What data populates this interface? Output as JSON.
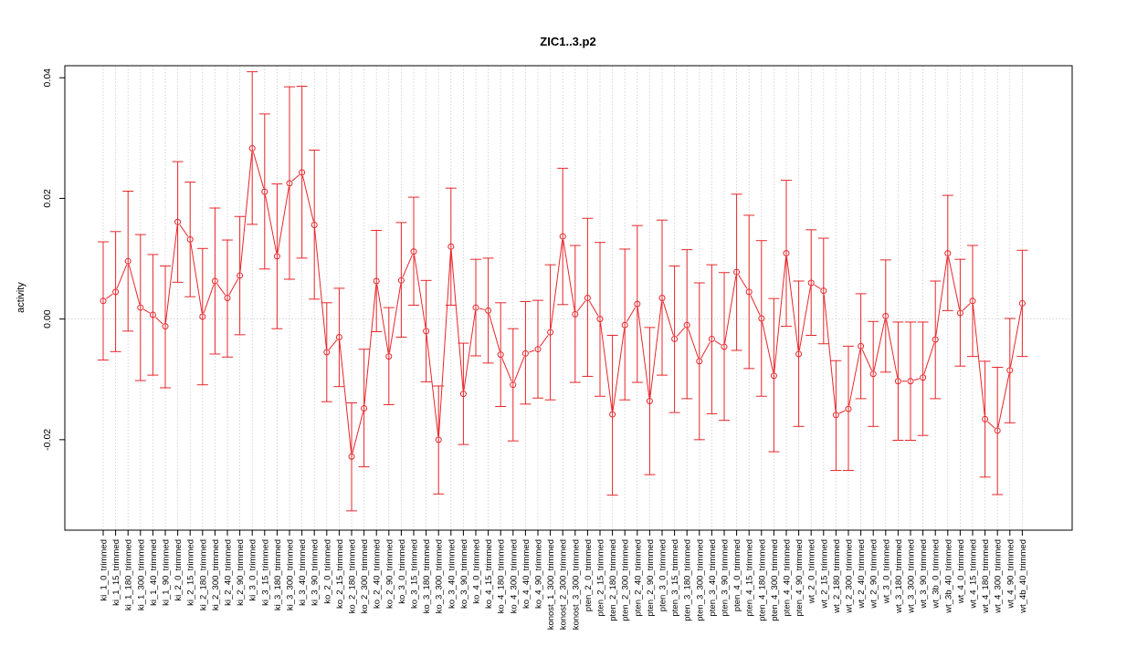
{
  "chart_data": {
    "type": "line",
    "title": "ZIC1..3.p2",
    "xlabel": "",
    "ylabel": "activity",
    "ylim": [
      -0.035,
      0.042
    ],
    "yticks": [
      -0.02,
      0.0,
      0.02,
      0.04
    ],
    "ytick_labels": [
      "-0.02",
      "0.00",
      "0.02",
      "0.04"
    ],
    "grid": true,
    "error_bars": true,
    "colors": {
      "series": "#e8262a",
      "grid": "#cccccc",
      "frame": "#000000"
    },
    "categories": [
      "ki_1_0_trimmed",
      "ki_1_15_trimmed",
      "ki_1_180_trimmed",
      "ki_1_300_trimmed",
      "ki_1_40_trimmed",
      "ki_1_90_trimmed",
      "ki_2_0_trimmed",
      "ki_2_15_trimmed",
      "ki_2_180_trimmed",
      "ki_2_300_trimmed",
      "ki_2_40_trimmed",
      "ki_2_90_trimmed",
      "ki_3_0_trimmed",
      "ki_3_15_trimmed",
      "ki_3_180_trimmed",
      "ki_3_300_trimmed",
      "ki_3_40_trimmed",
      "ki_3_90_trimmed",
      "ko_2_0_trimmed",
      "ko_2_15_trimmed",
      "ko_2_180_trimmed",
      "ko_2_300_trimmed",
      "ko_2_40_trimmed",
      "ko_2_90_trimmed",
      "ko_3_0_trimmed",
      "ko_3_15_trimmed",
      "ko_3_180_trimmed",
      "ko_3_300_trimmed",
      "ko_3_40_trimmed",
      "ko_3_90_trimmed",
      "ko_4_0_trimmed",
      "ko_4_15_trimmed",
      "ko_4_180_trimmed",
      "ko_4_300_trimmed",
      "ko_4_40_trimmed",
      "ko_4_90_trimmed",
      "konost_1_300_trimmed",
      "konost_2_300_trimmed",
      "konost_3_300_trimmed",
      "pten_2_0_trimmed",
      "pten_2_15_trimmed",
      "pten_2_180_trimmed",
      "pten_2_300_trimmed",
      "pten_2_40_trimmed",
      "pten_2_90_trimmed",
      "pten_3_0_trimmed",
      "pten_3_15_trimmed",
      "pten_3_180_trimmed",
      "pten_3_300_trimmed",
      "pten_3_40_trimmed",
      "pten_3_90_trimmed",
      "pten_4_0_trimmed",
      "pten_4_15_trimmed",
      "pten_4_180_trimmed",
      "pten_4_300_trimmed",
      "pten_4_40_trimmed",
      "pten_4_90_trimmed",
      "wt_2_0_trimmed",
      "wt_2_15_trimmed",
      "wt_2_180_trimmed",
      "wt_2_300_trimmed",
      "wt_2_40_trimmed",
      "wt_2_90_trimmed",
      "wt_3_0_trimmed",
      "wt_3_180_trimmed",
      "wt_3_300_trimmed",
      "wt_3_90_trimmed",
      "wt_3b_0_trimmed",
      "wt_3b_40_trimmed",
      "wt_4_0_trimmed",
      "wt_4_15_trimmed",
      "wt_4_180_trimmed",
      "wt_4_300_trimmed",
      "wt_4_90_trimmed",
      "wt_4b_40_trimmed"
    ],
    "values": [
      0.003,
      0.0045,
      0.0096,
      0.0019,
      0.0007,
      -0.0012,
      0.0161,
      0.0132,
      0.0004,
      0.0063,
      0.0035,
      0.0072,
      0.0283,
      0.0211,
      0.0104,
      0.0225,
      0.0243,
      0.0156,
      -0.0055,
      -0.003,
      -0.0228,
      -0.0148,
      0.0063,
      -0.0062,
      0.0064,
      0.0112,
      -0.002,
      -0.02,
      0.012,
      -0.0124,
      0.0019,
      0.0014,
      -0.0059,
      -0.0109,
      -0.0057,
      -0.005,
      -0.0022,
      0.0137,
      0.0008,
      0.0035,
      0.0,
      -0.0158,
      -0.001,
      0.0025,
      -0.0136,
      0.0035,
      -0.0033,
      -0.001,
      -0.007,
      -0.0033,
      -0.0046,
      0.0078,
      0.0045,
      0.0001,
      -0.0094,
      0.0109,
      -0.0058,
      0.006,
      0.0047,
      -0.0159,
      -0.0149,
      -0.0045,
      -0.0091,
      0.0005,
      -0.0103,
      -0.0103,
      -0.0097,
      -0.0034,
      0.0109,
      0.001,
      0.003,
      -0.0166,
      -0.0185,
      -0.0085,
      0.0026
    ],
    "upper": [
      0.0128,
      0.0145,
      0.0212,
      0.014,
      0.0107,
      0.0088,
      0.0261,
      0.0227,
      0.0117,
      0.0184,
      0.0131,
      0.017,
      0.041,
      0.034,
      0.0224,
      0.0385,
      0.0386,
      0.028,
      0.0027,
      0.0051,
      -0.0139,
      -0.005,
      0.0147,
      0.0019,
      0.016,
      0.0202,
      0.0064,
      -0.0111,
      0.0217,
      -0.004,
      0.0099,
      0.0101,
      0.0027,
      -0.0016,
      0.0029,
      0.0031,
      0.009,
      0.025,
      0.0122,
      0.0167,
      0.0127,
      -0.0027,
      0.0116,
      0.0155,
      -0.0014,
      0.0164,
      0.0088,
      0.0115,
      0.006,
      0.009,
      0.0077,
      0.0207,
      0.0172,
      0.013,
      0.0034,
      0.023,
      0.0063,
      0.0148,
      0.0134,
      -0.0069,
      -0.0045,
      0.0042,
      -0.0004,
      0.0098,
      -0.0005,
      -0.0005,
      -0.0005,
      0.0063,
      0.0205,
      0.0099,
      0.0122,
      -0.007,
      -0.008,
      0.0001,
      0.0114
    ],
    "lower": [
      -0.0068,
      -0.0054,
      -0.002,
      -0.0102,
      -0.0093,
      -0.0114,
      0.0061,
      0.0037,
      -0.0109,
      -0.0058,
      -0.0063,
      -0.0026,
      0.0157,
      0.0083,
      -0.0016,
      0.0066,
      0.0101,
      0.0033,
      -0.0137,
      -0.0112,
      -0.0318,
      -0.0245,
      -0.0021,
      -0.0142,
      -0.003,
      0.0023,
      -0.0104,
      -0.029,
      0.0023,
      -0.0208,
      -0.0061,
      -0.0073,
      -0.0145,
      -0.0202,
      -0.0141,
      -0.0131,
      -0.0134,
      0.0024,
      -0.0105,
      -0.0095,
      -0.0128,
      -0.0292,
      -0.0134,
      -0.0105,
      -0.0258,
      -0.0093,
      -0.0155,
      -0.0132,
      -0.02,
      -0.0157,
      -0.0168,
      -0.0052,
      -0.0082,
      -0.0128,
      -0.022,
      -0.0012,
      -0.0178,
      -0.0027,
      -0.0041,
      -0.0251,
      -0.0251,
      -0.0132,
      -0.0178,
      -0.0088,
      -0.0201,
      -0.0201,
      -0.0193,
      -0.0132,
      0.0014,
      -0.0078,
      -0.0062,
      -0.0262,
      -0.0291,
      -0.0172,
      -0.0062
    ]
  }
}
